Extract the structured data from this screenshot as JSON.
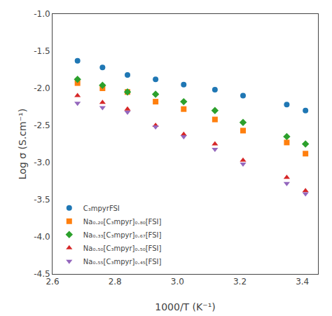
{
  "chart_data": {
    "type": "scatter",
    "xlabel": "1000/T (K⁻¹)",
    "ylabel": "Log σ (S.cm⁻¹)",
    "xlim": [
      2.6,
      3.45
    ],
    "ylim": [
      -4.5,
      -1.0
    ],
    "xticks": [
      2.6,
      2.8,
      {
        "value": 3.0,
        "label": "3.0"
      },
      3.2,
      3.4
    ],
    "yticks": [
      -4.5,
      {
        "value": -4.0,
        "label": "-4.0"
      },
      -3.5,
      {
        "value": -3.0,
        "label": "-3.0"
      },
      -2.5,
      {
        "value": -2.0,
        "label": "-2.0"
      },
      -1.5,
      {
        "value": -1.0,
        "label": "-1.0"
      }
    ],
    "grid": false,
    "legend": "lower left",
    "x": [
      2.68,
      2.76,
      2.84,
      2.93,
      3.02,
      3.12,
      3.21,
      3.35,
      3.41
    ],
    "series": [
      {
        "name": "C₃mpyrFSI",
        "marker": "circle",
        "values": [
          -1.63,
          -1.72,
          -1.82,
          -1.88,
          -1.95,
          -2.02,
          -2.1,
          -2.22,
          -2.3
        ]
      },
      {
        "name": "Na₀.₂₀[C₃mpyr]₀.₈₀[FSI]",
        "marker": "square",
        "values": [
          -1.93,
          -2.0,
          -2.05,
          -2.18,
          -2.28,
          -2.42,
          -2.57,
          -2.73,
          -2.88
        ]
      },
      {
        "name": "Na₀.₃₃[C₃mpyr]₀.₆₇[FSI]",
        "marker": "diamond",
        "values": [
          -1.88,
          -1.96,
          -2.05,
          -2.08,
          -2.18,
          -2.3,
          -2.46,
          -2.65,
          -2.75
        ]
      },
      {
        "name": "Na₀.₅₀[C₃mpyr]₀.₅₀[FSI]",
        "marker": "triangle-up",
        "values": [
          -2.1,
          -2.19,
          -2.28,
          -2.5,
          -2.62,
          -2.75,
          -2.97,
          -3.2,
          -3.38
        ]
      },
      {
        "name": "Na₀.₅₅[C₃mpyr]₀.₄₅[FSI]",
        "marker": "triangle-down",
        "values": [
          -2.2,
          -2.26,
          -2.32,
          -2.52,
          -2.65,
          -2.82,
          -3.02,
          -3.28,
          -3.42
        ]
      }
    ]
  }
}
